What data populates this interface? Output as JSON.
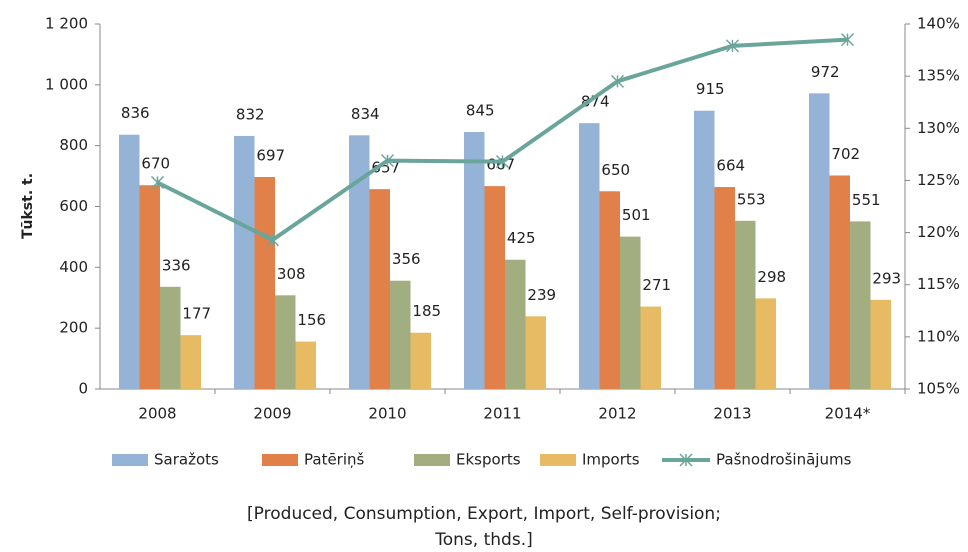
{
  "chart_data": {
    "type": "bar",
    "y_label": "Tūkst. t.",
    "categories": [
      "2008",
      "2009",
      "2010",
      "2011",
      "2012",
      "2013",
      "2014*"
    ],
    "series": [
      {
        "name": "Saražots",
        "color": "#95b3d7",
        "values": [
          836,
          832,
          834,
          845,
          874,
          915,
          972
        ]
      },
      {
        "name": "Patēriņš",
        "color": "#e2804a",
        "values": [
          670,
          697,
          657,
          667,
          650,
          664,
          702
        ]
      },
      {
        "name": "Eksports",
        "color": "#a2ae7f",
        "values": [
          336,
          308,
          356,
          425,
          501,
          553,
          551
        ]
      },
      {
        "name": "Imports",
        "color": "#e6bb63",
        "values": [
          177,
          156,
          185,
          239,
          271,
          298,
          293
        ]
      },
      {
        "name": "Pašnodrošinājums",
        "color": "#6aa59b",
        "type": "line",
        "axis": "y2",
        "values": [
          124.8,
          119.3,
          126.9,
          126.8,
          134.5,
          137.9,
          138.5
        ]
      }
    ],
    "ylim": [
      0,
      1200
    ],
    "yticks": [
      0,
      200,
      400,
      600,
      800,
      {
        "value": 1000,
        "label": "1 000"
      },
      {
        "value": 1200,
        "label": "1 200"
      }
    ],
    "y2lim": [
      105,
      140
    ],
    "y2ticks": [
      {
        "value": 105,
        "label": "105%"
      },
      {
        "value": 110,
        "label": "110%"
      },
      {
        "value": 115,
        "label": "115%"
      },
      {
        "value": 120,
        "label": "120%"
      },
      {
        "value": 125,
        "label": "125%"
      },
      {
        "value": 130,
        "label": "130%"
      },
      {
        "value": 135,
        "label": "135%"
      },
      {
        "value": 140,
        "label": "140%"
      }
    ],
    "legend": "bottom",
    "notes": [
      "[Produced, Consumption, Export, Import, Self-provision;",
      "Tons, thds.]"
    ]
  }
}
